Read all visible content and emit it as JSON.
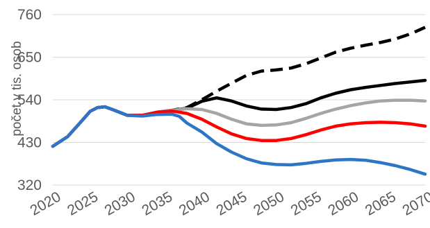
{
  "chart_data": {
    "type": "line",
    "title": "",
    "xlabel": "",
    "ylabel": "počet v tis. osob",
    "ylim": [
      320,
      760
    ],
    "yticks": [
      320,
      430,
      540,
      650,
      760
    ],
    "xlim": [
      2020,
      2070
    ],
    "xticks": [
      2020,
      2025,
      2030,
      2035,
      2040,
      2045,
      2050,
      2055,
      2060,
      2065,
      2070
    ],
    "grid": true,
    "legend": "none",
    "series": [
      {
        "color": "#000000",
        "dashed": true,
        "points": [
          [
            2020,
            420
          ],
          [
            2022,
            445
          ],
          [
            2024,
            488
          ],
          [
            2025,
            510
          ],
          [
            2026,
            520
          ],
          [
            2027,
            522
          ],
          [
            2028,
            515
          ],
          [
            2030,
            500
          ],
          [
            2032,
            500
          ],
          [
            2034,
            508
          ],
          [
            2036,
            513
          ],
          [
            2038,
            520
          ],
          [
            2040,
            540
          ],
          [
            2042,
            562
          ],
          [
            2044,
            583
          ],
          [
            2046,
            603
          ],
          [
            2048,
            614
          ],
          [
            2050,
            617
          ],
          [
            2052,
            622
          ],
          [
            2054,
            633
          ],
          [
            2056,
            648
          ],
          [
            2058,
            663
          ],
          [
            2060,
            673
          ],
          [
            2062,
            681
          ],
          [
            2064,
            688
          ],
          [
            2066,
            697
          ],
          [
            2068,
            710
          ],
          [
            2070,
            727
          ]
        ]
      },
      {
        "color": "#000000",
        "dashed": false,
        "points": [
          [
            2020,
            420
          ],
          [
            2022,
            445
          ],
          [
            2024,
            488
          ],
          [
            2025,
            510
          ],
          [
            2026,
            520
          ],
          [
            2027,
            522
          ],
          [
            2028,
            515
          ],
          [
            2030,
            500
          ],
          [
            2032,
            500
          ],
          [
            2034,
            508
          ],
          [
            2036,
            513
          ],
          [
            2038,
            518
          ],
          [
            2040,
            536
          ],
          [
            2042,
            545
          ],
          [
            2044,
            537
          ],
          [
            2046,
            524
          ],
          [
            2048,
            516
          ],
          [
            2050,
            515
          ],
          [
            2052,
            520
          ],
          [
            2054,
            530
          ],
          [
            2056,
            545
          ],
          [
            2058,
            557
          ],
          [
            2060,
            566
          ],
          [
            2062,
            572
          ],
          [
            2064,
            577
          ],
          [
            2066,
            582
          ],
          [
            2068,
            586
          ],
          [
            2070,
            590
          ]
        ]
      },
      {
        "color": "#a5a5a5",
        "dashed": false,
        "points": [
          [
            2020,
            420
          ],
          [
            2022,
            445
          ],
          [
            2024,
            488
          ],
          [
            2025,
            510
          ],
          [
            2026,
            520
          ],
          [
            2027,
            522
          ],
          [
            2028,
            515
          ],
          [
            2030,
            500
          ],
          [
            2032,
            500
          ],
          [
            2034,
            508
          ],
          [
            2036,
            513
          ],
          [
            2038,
            517
          ],
          [
            2040,
            515
          ],
          [
            2042,
            505
          ],
          [
            2044,
            490
          ],
          [
            2046,
            478
          ],
          [
            2048,
            474
          ],
          [
            2050,
            475
          ],
          [
            2052,
            481
          ],
          [
            2054,
            492
          ],
          [
            2056,
            505
          ],
          [
            2058,
            516
          ],
          [
            2060,
            525
          ],
          [
            2062,
            532
          ],
          [
            2064,
            537
          ],
          [
            2066,
            539
          ],
          [
            2068,
            539
          ],
          [
            2070,
            537
          ]
        ]
      },
      {
        "color": "#ff0000",
        "dashed": false,
        "points": [
          [
            2020,
            420
          ],
          [
            2022,
            445
          ],
          [
            2024,
            488
          ],
          [
            2025,
            510
          ],
          [
            2026,
            520
          ],
          [
            2027,
            522
          ],
          [
            2028,
            515
          ],
          [
            2030,
            500
          ],
          [
            2032,
            500
          ],
          [
            2034,
            508
          ],
          [
            2036,
            511
          ],
          [
            2038,
            505
          ],
          [
            2040,
            490
          ],
          [
            2042,
            470
          ],
          [
            2044,
            452
          ],
          [
            2046,
            440
          ],
          [
            2048,
            435
          ],
          [
            2050,
            435
          ],
          [
            2052,
            440
          ],
          [
            2054,
            450
          ],
          [
            2056,
            462
          ],
          [
            2058,
            472
          ],
          [
            2060,
            478
          ],
          [
            2062,
            481
          ],
          [
            2064,
            482
          ],
          [
            2066,
            481
          ],
          [
            2068,
            478
          ],
          [
            2070,
            472
          ]
        ]
      },
      {
        "color": "#2f75c5",
        "dashed": false,
        "points": [
          [
            2020,
            420
          ],
          [
            2022,
            445
          ],
          [
            2024,
            488
          ],
          [
            2025,
            510
          ],
          [
            2026,
            520
          ],
          [
            2027,
            522
          ],
          [
            2028,
            515
          ],
          [
            2030,
            500
          ],
          [
            2032,
            498
          ],
          [
            2034,
            502
          ],
          [
            2036,
            503
          ],
          [
            2037,
            497
          ],
          [
            2038,
            480
          ],
          [
            2040,
            457
          ],
          [
            2042,
            427
          ],
          [
            2044,
            405
          ],
          [
            2046,
            388
          ],
          [
            2048,
            377
          ],
          [
            2050,
            373
          ],
          [
            2052,
            372
          ],
          [
            2054,
            376
          ],
          [
            2056,
            381
          ],
          [
            2058,
            385
          ],
          [
            2060,
            386
          ],
          [
            2062,
            384
          ],
          [
            2064,
            378
          ],
          [
            2066,
            370
          ],
          [
            2068,
            360
          ],
          [
            2070,
            348
          ]
        ]
      }
    ]
  }
}
